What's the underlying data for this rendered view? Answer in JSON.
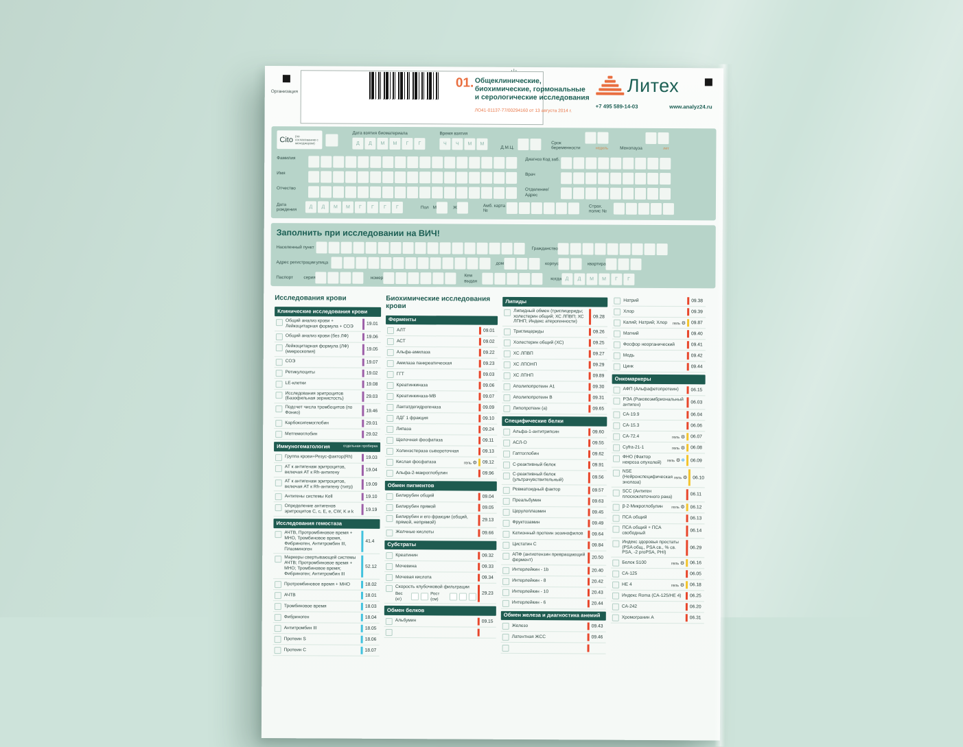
{
  "colors": {
    "accent_orange": "#e96e3f",
    "teal": "#1d6055",
    "band": "#1e5b50",
    "panel_green": "#b7d4c9",
    "stripe_purple": "#9d5fa8",
    "stripe_cyan": "#41c2de",
    "stripe_red": "#e8462b",
    "stripe_gel": "#f3c42d",
    "snowflake_blue": "#45a7e6"
  },
  "decor": {
    "psi_mark": "ψ"
  },
  "header": {
    "org_label": "Организация",
    "form_no": "01.",
    "form_title": "Общеклинические, биохимические, гормональные и серологические исследования",
    "license": "ЛО41-01137-77/00294160 от 13 августа 2014 г.",
    "brand": "Литех",
    "phone": "+7 495 589-14-03",
    "website": "www.analyz24.ru"
  },
  "panel1": {
    "cito": "Cito",
    "cito_note": "(по согласованию с менеджером)",
    "date_label": "Дата взятия биоматериала",
    "date_letters": [
      "Д",
      "Д",
      "М",
      "М",
      "Г",
      "Г"
    ],
    "time_label": "Время взятия",
    "time_letters": [
      "Ч",
      "Ч",
      "М",
      "М"
    ],
    "dmc": "Д.М.Ц.",
    "preg": "Срок беременности",
    "preg_unit": "недель",
    "meno": "Менопауза",
    "meno_unit": "лет",
    "surname": "Фамилия",
    "name": "Имя",
    "patronymic": "Отчество",
    "diagnosis": "Диагноз Код заб.",
    "doctor": "Врач",
    "department": "Отделение/ Адрес",
    "birth": "Дата рождения",
    "birth_letters": [
      "Д",
      "Д",
      "М",
      "М",
      "Г",
      "Г",
      "Г",
      "Г"
    ],
    "sex": "Пол",
    "male": "М",
    "female": "Ж",
    "amb_card": "Амб. карта №",
    "ins_policy": "Страх. полис №"
  },
  "panel2": {
    "title": "Заполнить при исследовании на ВИЧ!",
    "settlement": "Населенный пункт",
    "citizenship": "Гражданство",
    "reg_address": "Адрес регистрации",
    "street": "улица",
    "house": "дом",
    "building": "корпус",
    "apartment": "квартира",
    "passport": "Паспорт",
    "series": "серия",
    "number": "номер",
    "issued_by": "Кем выдан",
    "when": "когда",
    "when_letters": [
      "Д",
      "Д",
      "М",
      "М",
      "Г",
      "Г"
    ]
  },
  "tests": {
    "gel_label": "гель",
    "columns": [
      {
        "title": "Исследования крови",
        "sections": [
          {
            "name": "Клинические исследования крови",
            "stripe": "#9d5fa8",
            "items": [
              {
                "label": "Общий анализ крови + Лейкоцитарная формула + СОЭ",
                "code": "19.01"
              },
              {
                "label": "Общий анализ крови (без ЛФ)",
                "code": "19.06"
              },
              {
                "label": "Лейкоцитарная формула (ЛФ) (микроскопия)",
                "code": "19.05"
              },
              {
                "label": "СОЭ",
                "code": "19.07"
              },
              {
                "label": "Ретикулоциты",
                "code": "19.02"
              },
              {
                "label": "LE-клетки",
                "code": "19.08"
              },
              {
                "label": "Исследования эритроцитов (Базофильная зернистость)",
                "code": "29.03"
              },
              {
                "label": "Подсчет числа тромбоцитов (по Фонио)",
                "code": "19.46"
              },
              {
                "label": "Карбоксигемоглобин",
                "code": "29.01"
              },
              {
                "label": "Метгемоглобин",
                "code": "29.02"
              }
            ]
          },
          {
            "name": "Иммуногематология",
            "note": "отдельная пробирка",
            "stripe": "#9d5fa8",
            "items": [
              {
                "label": "Группа крови+Резус-фактор(Rh)",
                "code": "19.03"
              },
              {
                "label": "АТ к антигенам эритроцитов, включая АТ к Rh-антигену",
                "code": "19.04"
              },
              {
                "label": "АТ к антигенам эритроцитов, включая АТ к Rh-антигену (титр)",
                "code": "19.09"
              },
              {
                "label": "Антигены системы Kell",
                "code": "19.10"
              },
              {
                "label": "Определение антигенов эритроцитов C, c, E, e, CW, K и k",
                "code": "19.19"
              }
            ]
          },
          {
            "name": "Исследования гемостаза",
            "stripe": "#41c2de",
            "items": [
              {
                "label": "АЧТВ, Протромбиновое время + МНО, Тромбиновое время, Фибриноген, Антитромбин III, Плазминоген",
                "code": "41.4"
              },
              {
                "label": "Маркеры свертывающей системы АЧТВ; Протромбиновое время + МНО; Тромбиновое время; Фибриноген; Антитромбин III",
                "code": "52.12"
              },
              {
                "label": "Протромбиновое время + МНО",
                "code": "18.02"
              },
              {
                "label": "АЧТВ",
                "code": "18.01"
              },
              {
                "label": "Тромбиновое время",
                "code": "18.03"
              },
              {
                "label": "Фибриноген",
                "code": "18.04"
              },
              {
                "label": "Антитромбин III",
                "code": "18.05"
              },
              {
                "label": "Протеин S",
                "code": "18.06"
              },
              {
                "label": "Протеин C",
                "code": "18.07"
              }
            ]
          }
        ]
      },
      {
        "title": "Биохимические исследования крови",
        "sections": [
          {
            "name": "Ферменты",
            "stripe": "#e8462b",
            "items": [
              {
                "label": "АЛТ",
                "code": "09.01"
              },
              {
                "label": "АСТ",
                "code": "09.02"
              },
              {
                "label": "Альфа-амилаза",
                "code": "09.22"
              },
              {
                "label": "Амилаза панкреатическая",
                "code": "09.23"
              },
              {
                "label": "ГГТ",
                "code": "09.03"
              },
              {
                "label": "Креатинкиназа",
                "code": "09.06"
              },
              {
                "label": "Креатинкиназа-МВ",
                "code": "09.07"
              },
              {
                "label": "Лактатдегидрогеназа",
                "code": "09.09"
              },
              {
                "label": "ЛДГ 1 фракция",
                "code": "09.10"
              },
              {
                "label": "Липаза",
                "code": "09.24"
              },
              {
                "label": "Щелочная фосфатаза",
                "code": "09.11"
              },
              {
                "label": "Холинэстераза сывороточная",
                "code": "09.13"
              },
              {
                "label": "Кислая фосфатаза",
                "gel": true,
                "code": "09.12"
              },
              {
                "label": "Альфа-2-макроглобулин",
                "code": "09.96"
              }
            ]
          },
          {
            "name": "Обмен пигментов",
            "stripe": "#e8462b",
            "items": [
              {
                "label": "Билирубин общий",
                "code": "09.04"
              },
              {
                "label": "Билирубин прямой",
                "code": "09.05"
              },
              {
                "label": "Билирубин и его фракции (общий, прямой, непрямой)",
                "code": "29.13"
              },
              {
                "label": "Желчные кислоты",
                "code": "09.66"
              }
            ]
          },
          {
            "name": "Субстраты",
            "stripe": "#e8462b",
            "items": [
              {
                "label": "Креатинин",
                "code": "09.32"
              },
              {
                "label": "Мочевина",
                "code": "09.33"
              },
              {
                "label": "Мочевая кислота",
                "code": "09.34"
              },
              {
                "label": "Скорость клубочковой фильтрации",
                "code": "29.23",
                "gfr": {
                  "weight_label": "Вес (кг)",
                  "height_label": "Рост (см)"
                }
              }
            ]
          },
          {
            "name": "Обмен белков",
            "stripe": "#e8462b",
            "items": [
              {
                "label": "Альбумин",
                "code": "09.15"
              },
              {
                "label": "",
                "code": ""
              }
            ]
          }
        ]
      },
      {
        "sections": [
          {
            "name": "Липиды",
            "stripe": "#e8462b",
            "items": [
              {
                "label": "Липидный обмен (триглицериды; холестерин общий; ХС ЛПВП; ХС ЛПНП; Индекс атерогенности)",
                "code": "09.28"
              },
              {
                "label": "Триглицериды",
                "code": "09.26"
              },
              {
                "label": "Холестерин общий (ХС)",
                "code": "09.25"
              },
              {
                "label": "ХС ЛПВП",
                "code": "09.27"
              },
              {
                "label": "ХС ЛПОНП",
                "code": "09.29"
              },
              {
                "label": "ХС ЛПНП",
                "code": "09.89"
              },
              {
                "label": "Аполипопротеин А1",
                "code": "09.30"
              },
              {
                "label": "Аполипопротеин В",
                "code": "09.31"
              },
              {
                "label": "Липопротеин (а)",
                "code": "09.65"
              }
            ]
          },
          {
            "name": "Специфические белки",
            "stripe": "#e8462b",
            "items": [
              {
                "label": "Альфа-1-антитрипсин",
                "code": "09.60"
              },
              {
                "label": "АСЛ-О",
                "code": "09.55"
              },
              {
                "label": "Гаптоглобин",
                "code": "09.62"
              },
              {
                "label": "С-реактивный белок",
                "code": "09.91"
              },
              {
                "label": "С-реактивный белок (ультрачувствительный)",
                "code": "09.56"
              },
              {
                "label": "Ревматоидный фактор",
                "code": "09.57"
              },
              {
                "label": "Преальбумин",
                "code": "09.63"
              },
              {
                "label": "Церулоплазмин",
                "code": "09.45"
              },
              {
                "label": "Фруктозамин",
                "code": "09.49"
              },
              {
                "label": "Катионный протеин эозинофилов",
                "code": "09.64"
              },
              {
                "label": "Цистатин С",
                "code": "09.84"
              },
              {
                "label": "АПФ (ангиотензин превращающий фермент)",
                "code": "20.50"
              },
              {
                "label": "Интерлейкин - 1b",
                "code": "20.40"
              },
              {
                "label": "Интерлейкин - 8",
                "code": "20.42"
              },
              {
                "label": "Интерлейкин - 10",
                "code": "20.43"
              },
              {
                "label": "Интерлейкин - 6",
                "code": "20.44"
              }
            ]
          },
          {
            "name": "Обмен железа и диагностика анемий",
            "stripe": "#e8462b",
            "items": [
              {
                "label": "Железо",
                "code": "09.43"
              },
              {
                "label": "Латентная ЖСС",
                "code": "09.46"
              },
              {
                "label": "",
                "code": ""
              }
            ]
          }
        ]
      },
      {
        "sections": [
          {
            "stripe": "#e8462b",
            "items": [
              {
                "label": "Натрий",
                "code": "09.38"
              },
              {
                "label": "Хлор",
                "code": "09.39"
              },
              {
                "label": "Калий; Натрий; Хлор",
                "gel": true,
                "code": "09.87"
              },
              {
                "label": "Магний",
                "code": "09.40"
              },
              {
                "label": "Фосфор неорганический",
                "code": "09.41"
              },
              {
                "label": "Медь",
                "code": "09.42"
              },
              {
                "label": "Цинк",
                "code": "09.44"
              }
            ]
          },
          {
            "name": "Онкомаркеры",
            "stripe": "#e8462b",
            "items": [
              {
                "label": "АФП (Альфафетопротеин)",
                "code": "06.15"
              },
              {
                "label": "РЭА (Раковоэмбриональный антиген)",
                "code": "06.03"
              },
              {
                "label": "СА-19.9",
                "code": "06.04"
              },
              {
                "label": "СА-15.3",
                "code": "06.06"
              },
              {
                "label": "СА-72.4",
                "gel": true,
                "code": "06.07"
              },
              {
                "label": "Cyfra-21-1",
                "gel": true,
                "code": "06.08"
              },
              {
                "label": "ФНО (Фактор некроза опухолей)",
                "gel": true,
                "snow": true,
                "code": "06.09"
              },
              {
                "label": "NSE (Нейронспецифическая энолаза)",
                "gel": true,
                "code": "06.10"
              },
              {
                "label": "SCC (Антиген плоскоклеточного рака)",
                "code": "06.11"
              },
              {
                "label": "β-2-Микроглобулин",
                "gel": true,
                "code": "06.12"
              },
              {
                "label": "ПСА общий",
                "code": "06.13"
              },
              {
                "label": "ПСА общий + ПСА свободный",
                "code": "06.14"
              },
              {
                "label": "Индекс здоровья простаты (PSA общ., PSA св., % св. PSA, -2 proPSA, PHI)",
                "code": "06.29"
              },
              {
                "label": "Белок S100",
                "gel": true,
                "code": "06.16"
              },
              {
                "label": "СА-125",
                "code": "06.05"
              },
              {
                "label": "НЕ 4",
                "gel": true,
                "code": "06.18"
              },
              {
                "label": "Индекс Roma (СА-125/НЕ 4)",
                "code": "06.25"
              },
              {
                "label": "СА-242",
                "code": "06.20"
              },
              {
                "label": "Хромогранин А",
                "code": "06.31"
              }
            ]
          }
        ]
      }
    ]
  }
}
